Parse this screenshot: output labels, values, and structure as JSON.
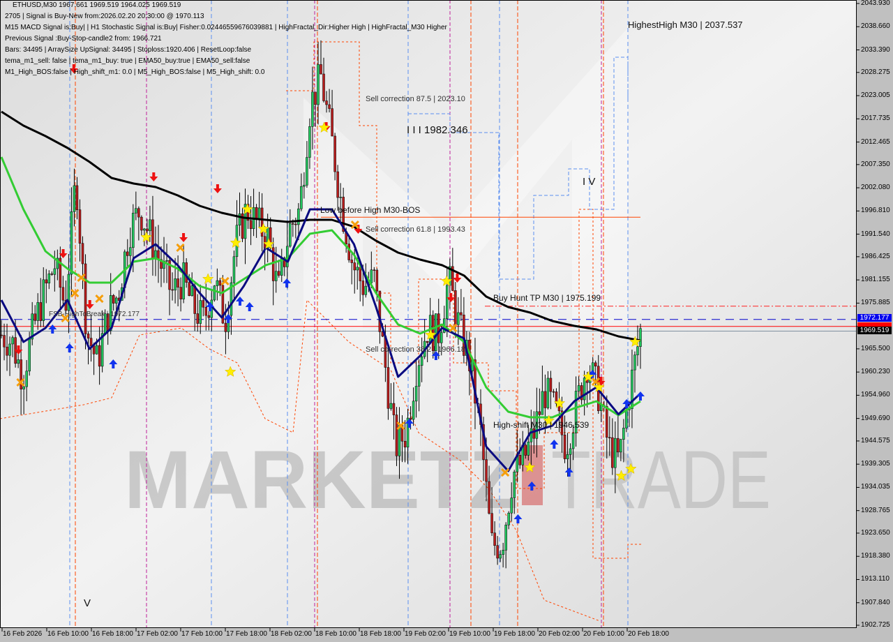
{
  "header": {
    "symbol_line": "ETHUSD,M30  1967.661 1969.519 1964.025 1969.519",
    "lines": [
      "2705 | Signal is Buy-New from:2026.02.20 20:30:00 @ 1970.113",
      "M15 MACD Signal is:Buy| | H1 Stochastic Signal is:Buy| Fisher:0.02446559676039881 | HighFractal_Dir:Higher High | HighFractal_M30 Higher",
      "Previous Signal :Buy-Stop-candle2 from: 1966.721",
      "Bars: 34495 | ArraySize UpSignal: 34495 | Stoploss:1920.406 | ResetLoop:false",
      "tema_m1_sell: false | tema_m1_buy: true | EMA50_buy:true | EMA50_sell:false",
      "M1_High_BOS:false | High_shift_m1: 0.0 | M5_High_BOS:false | M5_High_shift: 0.0"
    ]
  },
  "annotations": {
    "highest_high": "HighestHigh   M30 | 2037.537",
    "sell_87": "Sell correction 87.5 | 2023.10",
    "wave_3": "I I I 1982.346",
    "wave_4": "I V",
    "wave_5": "V",
    "low_before_high": "Low before High   M30-BOS",
    "sell_61": "Sell correction 61.8 | 1993.43",
    "buy_hunt": "Buy Hunt TP M30 | 1975.199",
    "fsb": "FSB-HighToBreak | 1972.177",
    "sell_38": "Sell correction 38.2 | 1966.18",
    "high_shift": "High-shift M30 | 1946.539"
  },
  "watermark": {
    "left": "MARKETZ",
    "right": "TRADE"
  },
  "price_labels": {
    "fsb": "1972.177",
    "current": "1969.519"
  },
  "colors": {
    "bull": "#22c55e",
    "bear": "#b91c1c",
    "ema_slow": "#000000",
    "ema_mid": "#33cc33",
    "ema_fast": "#0a0a80",
    "sell_arrow": "#ee1111",
    "buy_arrow": "#1133ee",
    "star": "#ffee00",
    "cross": "#f59e0b",
    "fsb_line": "#0000cc",
    "current_line": "#ff0000",
    "buy_hunt_line": "#ff2020",
    "bos_line": "#ff4400"
  },
  "chart_data": {
    "type": "candlestick",
    "symbol": "ETHUSD",
    "timeframe": "M30",
    "ylim": [
      1902.725,
      2043.93
    ],
    "y_ticks": [
      "2043.930",
      "2038.660",
      "2033.390",
      "2028.275",
      "2023.005",
      "2017.735",
      "2012.465",
      "2007.350",
      "2002.080",
      "1996.810",
      "1991.540",
      "1986.425",
      "1981.155",
      "1975.885",
      "1970.615",
      "1965.500",
      "1960.230",
      "1954.960",
      "1949.690",
      "1944.575",
      "1939.305",
      "1934.035",
      "1928.765",
      "1923.650",
      "1918.380",
      "1913.110",
      "1907.840",
      "1902.725"
    ],
    "x_ticks": [
      "16 Feb 2026",
      "16 Feb 10:00",
      "16 Feb 18:00",
      "17 Feb 02:00",
      "17 Feb 10:00",
      "17 Feb 18:00",
      "18 Feb 02:00",
      "18 Feb 10:00",
      "18 Feb 18:00",
      "19 Feb 02:00",
      "19 Feb 10:00",
      "19 Feb 18:00",
      "20 Feb 02:00",
      "20 Feb 10:00",
      "20 Feb 18:00"
    ],
    "close_path": [
      1968.65,
      1967.07,
      1959.15,
      1970.24,
      1978.16,
      1984.5,
      1974.99,
      2005.1,
      1969.6,
      1962.31,
      1973.41,
      1978.16,
      1992.42,
      1997.18,
      1990.84,
      1984.5,
      1978.16,
      1981.33,
      1974.99,
      1971.82,
      1981.33,
      1971.82,
      1989.26,
      1997.18,
      1994.01,
      1990.84,
      1978.16,
      1992.42,
      1997.18,
      2020.95,
      2027.29,
      2013.02,
      1997.18,
      1984.5,
      1979.75,
      1981.33,
      1962.31,
      1943.3,
      1946.47,
      1962.31,
      1970.24,
      1968.65,
      1981.33,
      1970.24,
      1962.31,
      1946.47,
      1921.11,
      1921.11,
      1936.96,
      1940.13,
      1946.47,
      1955.98,
      1951.22,
      1943.3,
      1952.8,
      1962.31,
      1955.98,
      1943.3,
      1940.13,
      1955.98,
      1969.52
    ],
    "series": [
      {
        "key": "ema_slow",
        "values": [
          2019.37,
          2016.2,
          2013.82,
          2011.12,
          2007.95,
          2004.31,
          2003.04,
          2002.25,
          2000.35,
          1997.97,
          1996.39,
          1995.28,
          1994.8,
          1994.33,
          1994.8,
          1994.8,
          1993.22,
          1990.05,
          1987.35,
          1985.77,
          1984.5,
          1982.12,
          1977.37,
          1974.99,
          1973.72,
          1971.82,
          1970.71,
          1969.92,
          1968.33,
          1967.38
        ]
      },
      {
        "key": "ema_mid",
        "values": [
          2009.06,
          1997.18,
          1987.67,
          1983.71,
          1980.54,
          1980.54,
          1985.29,
          1986.08,
          1983.71,
          1979.75,
          1978.16,
          1981.33,
          1984.5,
          1986.08,
          1991.63,
          1992.42,
          1986.88,
          1978.16,
          1971.03,
          1968.97,
          1971.03,
          1967.07,
          1956.77,
          1951.22,
          1949.95,
          1949.95,
          1952.01,
          1953.6,
          1950.43,
          1953.6
        ]
      },
      {
        "key": "ema_fast",
        "values": [
          1976.57,
          1967.07,
          1970.24,
          1976.57,
          1965.48,
          1970.24,
          1986.08,
          1989.26,
          1984.5,
          1978.16,
          1972.61,
          1979.75,
          1988.47,
          1985.29,
          1997.18,
          1997.18,
          1989.26,
          1974.99,
          1959.15,
          1963.9,
          1970.24,
          1967.86,
          1943.3,
          1937.75,
          1946.47,
          1948.05,
          1953.6,
          1956.77,
          1950.64,
          1955.39
        ]
      }
    ],
    "levels": [
      {
        "key": "fsb",
        "price": 1972.177
      },
      {
        "key": "current",
        "price": 1970.6
      },
      {
        "key": "close",
        "price": 1969.519
      },
      {
        "key": "buy_hunt",
        "price": 1975.199
      },
      {
        "key": "bos",
        "price": 1995.4
      }
    ],
    "markers": [
      {
        "type": "sell",
        "at": 6.8,
        "price": 2028.87
      },
      {
        "type": "sell",
        "at": 1.6,
        "price": 1965.01
      },
      {
        "type": "sell",
        "at": 5.8,
        "price": 1986.88
      },
      {
        "type": "sell",
        "at": 8.3,
        "price": 1975.31
      },
      {
        "type": "sell",
        "at": 14.3,
        "price": 2004.31
      },
      {
        "type": "sell",
        "at": 17.1,
        "price": 1990.52
      },
      {
        "type": "sell",
        "at": 20.3,
        "price": 2001.62
      },
      {
        "type": "sell",
        "at": 30.5,
        "price": 2015.72
      },
      {
        "type": "sell",
        "at": 33.5,
        "price": 1992.42
      },
      {
        "type": "sell",
        "at": 42.8,
        "price": 1981.33
      },
      {
        "type": "sell",
        "at": 42.2,
        "price": 1976.89
      },
      {
        "type": "sell",
        "at": 56.3,
        "price": 1957.88
      },
      {
        "type": "buy",
        "at": 4.8,
        "price": 1970.24
      },
      {
        "type": "buy",
        "at": 6.4,
        "price": 1965.96
      },
      {
        "type": "buy",
        "at": 10.5,
        "price": 1962.31
      },
      {
        "type": "buy",
        "at": 19.6,
        "price": 1975.31
      },
      {
        "type": "buy",
        "at": 21.3,
        "price": 1972.61
      },
      {
        "type": "buy",
        "at": 22.4,
        "price": 1976.57
      },
      {
        "type": "buy",
        "at": 23.3,
        "price": 1975.31
      },
      {
        "type": "buy",
        "at": 26.8,
        "price": 1980.7
      },
      {
        "type": "buy",
        "at": 38.3,
        "price": 1948.84
      },
      {
        "type": "buy",
        "at": 40.8,
        "price": 1964.22
      },
      {
        "type": "buy",
        "at": 48.5,
        "price": 1927.13
      },
      {
        "type": "buy",
        "at": 49.8,
        "price": 1934.58
      },
      {
        "type": "buy",
        "at": 51.9,
        "price": 1944.09
      },
      {
        "type": "buy",
        "at": 53.3,
        "price": 1937.75
      },
      {
        "type": "buy",
        "at": 55.5,
        "price": 1959.94
      },
      {
        "type": "buy",
        "at": 58.7,
        "price": 1953.28
      },
      {
        "type": "buy",
        "at": 60,
        "price": 1955.02
      },
      {
        "type": "star",
        "at": 13.6,
        "price": 1990.84
      },
      {
        "type": "star",
        "at": 19.4,
        "price": 1981.33
      },
      {
        "type": "star",
        "at": 22,
        "price": 1989.57
      },
      {
        "type": "star",
        "at": 23.1,
        "price": 1997.18
      },
      {
        "type": "star",
        "at": 24.6,
        "price": 1992.74
      },
      {
        "type": "star",
        "at": 25.1,
        "price": 1989.26
      },
      {
        "type": "star",
        "at": 21.5,
        "price": 1960.26
      },
      {
        "type": "star",
        "at": 30.3,
        "price": 2015.72
      },
      {
        "type": "star",
        "at": 40.3,
        "price": 1968.65
      },
      {
        "type": "star",
        "at": 41.8,
        "price": 1980.86
      },
      {
        "type": "star",
        "at": 49.6,
        "price": 1938.54
      },
      {
        "type": "star",
        "at": 52.4,
        "price": 1953.12
      },
      {
        "type": "star",
        "at": 51.4,
        "price": 1949.16
      },
      {
        "type": "star",
        "at": 55.1,
        "price": 1959.15
      },
      {
        "type": "star",
        "at": 56.1,
        "price": 1956.77
      },
      {
        "type": "star",
        "at": 59.5,
        "price": 1967.07
      },
      {
        "type": "star",
        "at": 58.2,
        "price": 1936.64
      },
      {
        "type": "star",
        "at": 59.1,
        "price": 1938.23
      },
      {
        "type": "cross",
        "at": 1.8,
        "price": 1957.88
      },
      {
        "type": "cross",
        "at": 6,
        "price": 1972.46
      },
      {
        "type": "cross",
        "at": 6.9,
        "price": 1978.16
      },
      {
        "type": "cross",
        "at": 7.5,
        "price": 1981.65
      },
      {
        "type": "cross",
        "at": 9.2,
        "price": 1976.89
      },
      {
        "type": "cross",
        "at": 16.8,
        "price": 1988.47
      },
      {
        "type": "cross",
        "at": 21,
        "price": 1980.86
      },
      {
        "type": "cross",
        "at": 33.2,
        "price": 1993.69
      },
      {
        "type": "cross",
        "at": 37.5,
        "price": 1948.05
      },
      {
        "type": "cross",
        "at": 42.4,
        "price": 1970.24
      },
      {
        "type": "cross",
        "at": 47.3,
        "price": 1937.43
      },
      {
        "type": "cross",
        "at": 55.8,
        "price": 1958.04
      }
    ]
  }
}
